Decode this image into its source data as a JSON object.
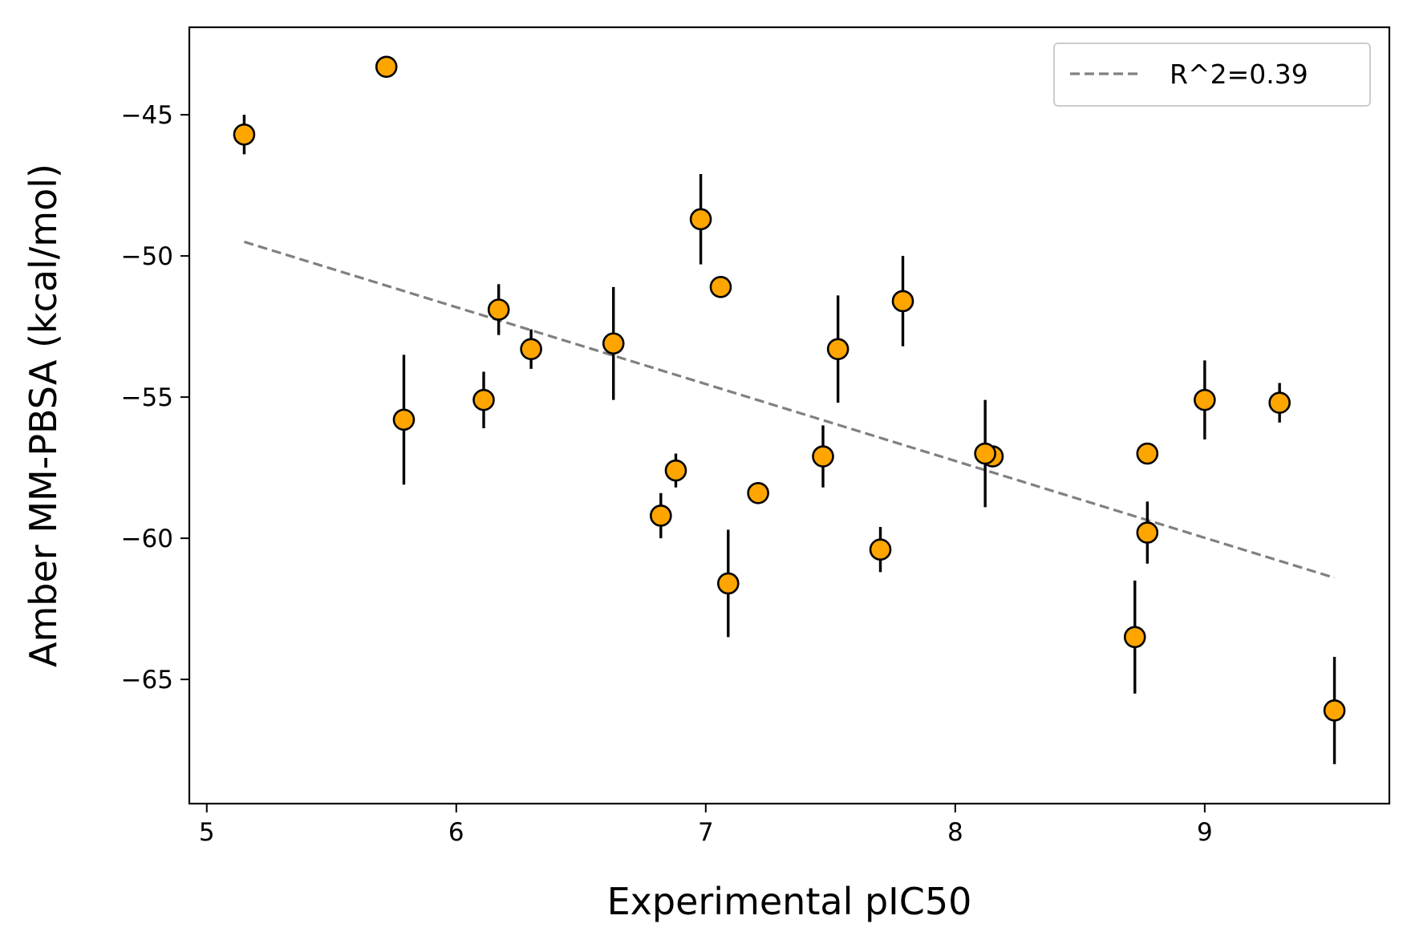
{
  "chart_data": {
    "type": "scatter",
    "xlabel": "Experimental pIC50",
    "ylabel": "Amber MM-PBSA (kcal/mol)",
    "xlim": [
      4.93,
      9.74
    ],
    "ylim": [
      -69.4,
      -41.9
    ],
    "x_ticks": [
      5,
      6,
      7,
      8,
      9
    ],
    "x_tick_labels": [
      "5",
      "6",
      "7",
      "8",
      "9"
    ],
    "y_ticks": [
      -45,
      -50,
      -55,
      -60,
      -65
    ],
    "y_tick_labels": [
      "−45",
      "−50",
      "−55",
      "−60",
      "−65"
    ],
    "grid": false,
    "legend": {
      "position": "upper-right",
      "entries": [
        "R^2=0.39"
      ]
    },
    "series": [
      {
        "marker": "circle",
        "color": "#FFA500",
        "edge_color": "#000000",
        "points": [
          {
            "x": 5.15,
            "y": -45.7,
            "err": 0.7
          },
          {
            "x": 5.72,
            "y": -43.3,
            "err": 0.0
          },
          {
            "x": 5.79,
            "y": -55.8,
            "err": 2.3
          },
          {
            "x": 6.11,
            "y": -55.1,
            "err": 1.0
          },
          {
            "x": 6.17,
            "y": -51.9,
            "err": 0.9
          },
          {
            "x": 6.3,
            "y": -53.3,
            "err": 0.7
          },
          {
            "x": 6.63,
            "y": -53.1,
            "err": 2.0
          },
          {
            "x": 6.82,
            "y": -59.2,
            "err": 0.8
          },
          {
            "x": 6.88,
            "y": -57.6,
            "err": 0.6
          },
          {
            "x": 6.98,
            "y": -48.7,
            "err": 1.6
          },
          {
            "x": 7.06,
            "y": -51.1,
            "err": 0.0
          },
          {
            "x": 7.09,
            "y": -61.6,
            "err": 1.9
          },
          {
            "x": 7.21,
            "y": -58.4,
            "err": 0.0
          },
          {
            "x": 7.47,
            "y": -57.1,
            "err": 1.1
          },
          {
            "x": 7.53,
            "y": -53.3,
            "err": 1.9
          },
          {
            "x": 7.7,
            "y": -60.4,
            "err": 0.8
          },
          {
            "x": 7.79,
            "y": -51.6,
            "err": 1.6
          },
          {
            "x": 8.15,
            "y": -57.1,
            "err": 0.0
          },
          {
            "x": 8.12,
            "y": -57.0,
            "err": 1.9
          },
          {
            "x": 8.72,
            "y": -63.5,
            "err": 2.0
          },
          {
            "x": 8.77,
            "y": -57.0,
            "err": 0.0
          },
          {
            "x": 8.77,
            "y": -59.8,
            "err": 1.1
          },
          {
            "x": 9.0,
            "y": -55.1,
            "err": 1.4
          },
          {
            "x": 9.3,
            "y": -55.2,
            "err": 0.7
          },
          {
            "x": 9.52,
            "y": -66.1,
            "err": 1.9
          }
        ]
      },
      {
        "name": "R^2=0.39",
        "kind": "regression-line",
        "style": "dashed",
        "color": "#808080",
        "x": [
          5.15,
          9.52
        ],
        "y": [
          -49.5,
          -61.4
        ]
      }
    ]
  }
}
